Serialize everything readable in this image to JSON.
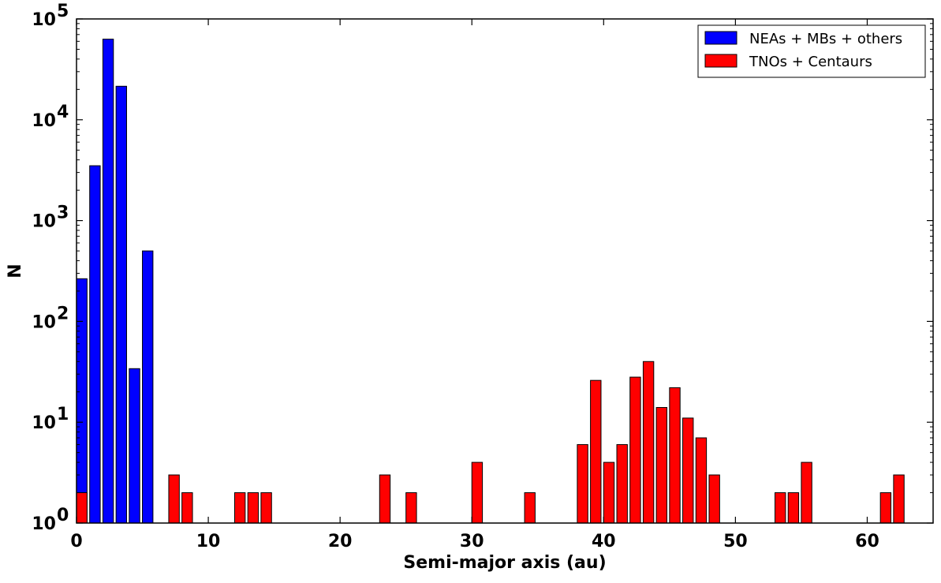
{
  "chart_data": {
    "type": "bar",
    "title": "",
    "xlabel": "Semi-major axis (au)",
    "ylabel": "N",
    "xlim": [
      0,
      65
    ],
    "ylim": [
      1,
      100000
    ],
    "yscale": "log",
    "bar_width": 0.8,
    "grid": false,
    "legend_position": "top-right",
    "x_ticks": [
      {
        "value": 0,
        "label": "0"
      },
      {
        "value": 10,
        "label": "10"
      },
      {
        "value": 20,
        "label": "20"
      },
      {
        "value": 30,
        "label": "30"
      },
      {
        "value": 40,
        "label": "40"
      },
      {
        "value": 50,
        "label": "50"
      },
      {
        "value": 60,
        "label": "60"
      }
    ],
    "y_ticks": [
      {
        "value": 1,
        "base": "10",
        "exp": "0"
      },
      {
        "value": 10,
        "base": "10",
        "exp": "1"
      },
      {
        "value": 100,
        "base": "10",
        "exp": "2"
      },
      {
        "value": 1000,
        "base": "10",
        "exp": "3"
      },
      {
        "value": 10000,
        "base": "10",
        "exp": "4"
      },
      {
        "value": 100000,
        "base": "10",
        "exp": "5"
      }
    ],
    "series": [
      {
        "name": "NEAs + MBs + others",
        "color": "#0000ff",
        "points": [
          {
            "x": 0,
            "y": 265
          },
          {
            "x": 1,
            "y": 3500
          },
          {
            "x": 2,
            "y": 63000
          },
          {
            "x": 3,
            "y": 21500
          },
          {
            "x": 4,
            "y": 34
          },
          {
            "x": 5,
            "y": 500
          }
        ]
      },
      {
        "name": "TNOs + Centaurs",
        "color": "#ff0000",
        "points": [
          {
            "x": 0,
            "y": 2
          },
          {
            "x": 7,
            "y": 3
          },
          {
            "x": 8,
            "y": 2
          },
          {
            "x": 12,
            "y": 2
          },
          {
            "x": 13,
            "y": 2
          },
          {
            "x": 14,
            "y": 2
          },
          {
            "x": 23,
            "y": 3
          },
          {
            "x": 25,
            "y": 2
          },
          {
            "x": 30,
            "y": 4
          },
          {
            "x": 34,
            "y": 2
          },
          {
            "x": 38,
            "y": 6
          },
          {
            "x": 39,
            "y": 26
          },
          {
            "x": 40,
            "y": 4
          },
          {
            "x": 41,
            "y": 6
          },
          {
            "x": 42,
            "y": 28
          },
          {
            "x": 43,
            "y": 40
          },
          {
            "x": 44,
            "y": 14
          },
          {
            "x": 45,
            "y": 22
          },
          {
            "x": 46,
            "y": 11
          },
          {
            "x": 47,
            "y": 7
          },
          {
            "x": 48,
            "y": 3
          },
          {
            "x": 53,
            "y": 2
          },
          {
            "x": 54,
            "y": 2
          },
          {
            "x": 55,
            "y": 4
          },
          {
            "x": 61,
            "y": 2
          },
          {
            "x": 62,
            "y": 3
          }
        ]
      }
    ]
  }
}
